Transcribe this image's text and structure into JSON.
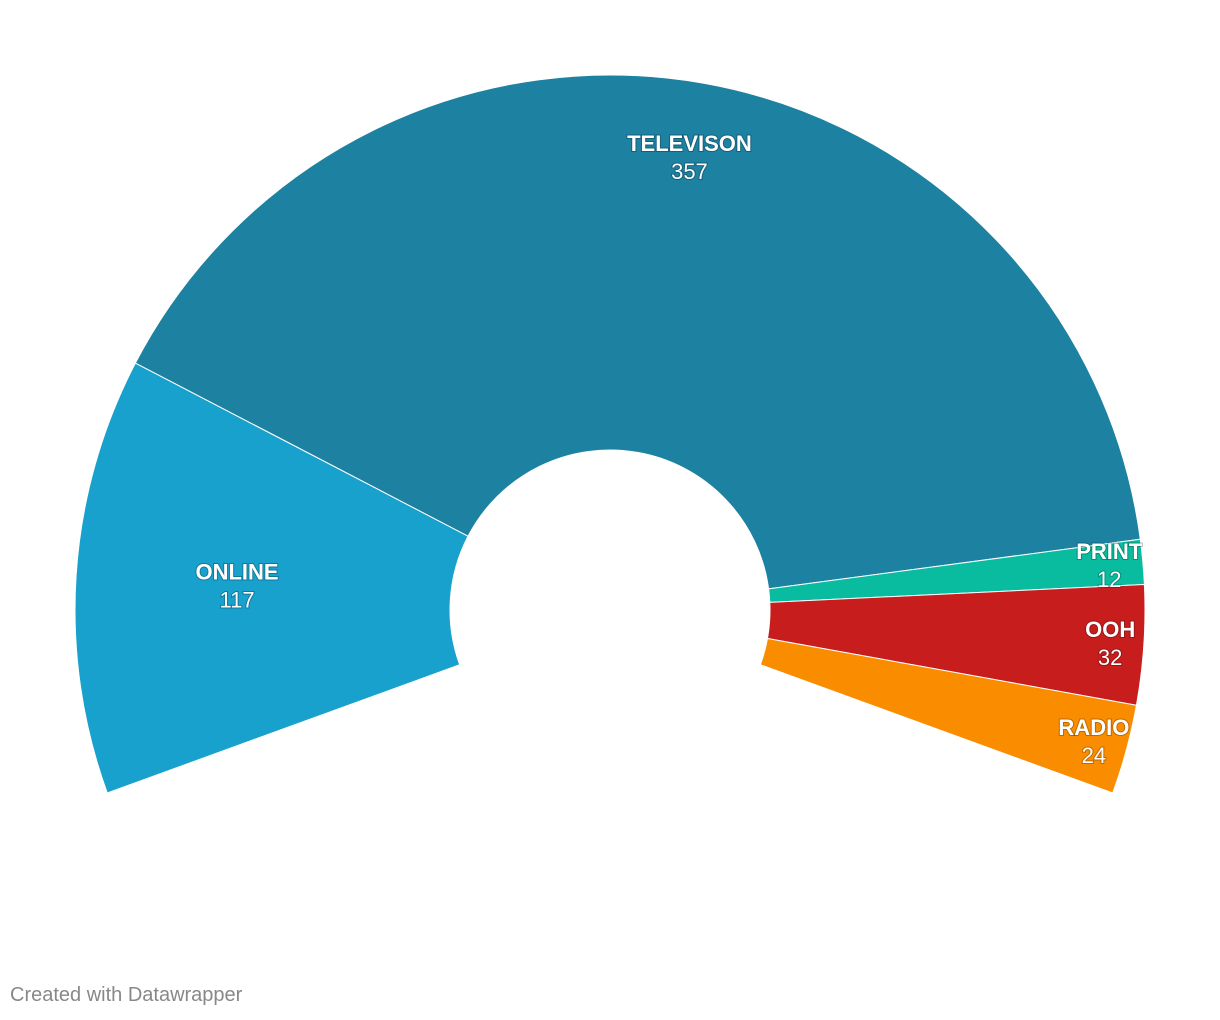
{
  "chart_data": {
    "type": "pie",
    "variant": "semi-donut",
    "categories": [
      "ONLINE",
      "TELEVISON",
      "PRINT",
      "OOH",
      "RADIO"
    ],
    "values": [
      117,
      357,
      12,
      32,
      24
    ],
    "colors": [
      "#18a1cd",
      "#1d81a2",
      "#09bb9f",
      "#c71e1d",
      "#fa8c00"
    ],
    "title": "",
    "legend": "none"
  },
  "footer": {
    "credit": "Created with Datawrapper"
  }
}
